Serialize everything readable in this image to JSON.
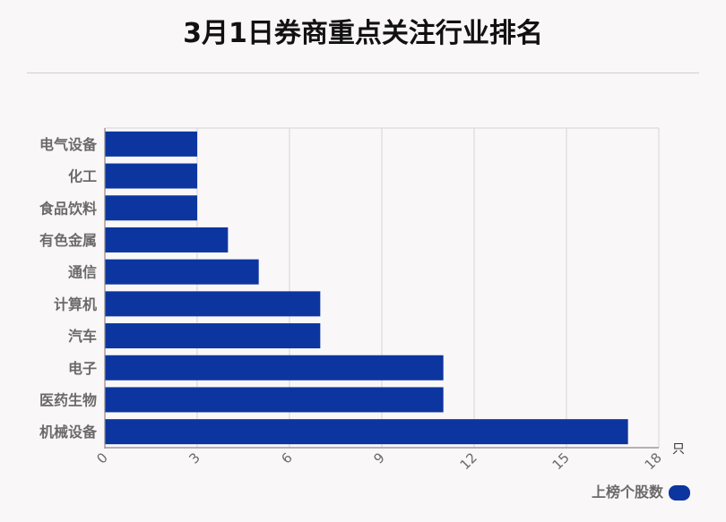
{
  "chart_data": {
    "type": "bar",
    "orientation": "horizontal",
    "title": "3月1日券商重点关注行业排名",
    "categories": [
      "电气设备",
      "化工",
      "食品饮料",
      "有色金属",
      "通信",
      "计算机",
      "汽车",
      "电子",
      "医药生物",
      "机械设备"
    ],
    "series": [
      {
        "name": "上榜个股数",
        "values": [
          3,
          3,
          3,
          4,
          5,
          7,
          7,
          11,
          11,
          17
        ]
      }
    ],
    "xlim": [
      0,
      18
    ],
    "xticks": [
      0,
      3,
      6,
      9,
      12,
      15,
      18
    ],
    "x_unit": "只",
    "grid": true,
    "legend_position": "bottom-right",
    "bar_color": "#0d35a0"
  }
}
